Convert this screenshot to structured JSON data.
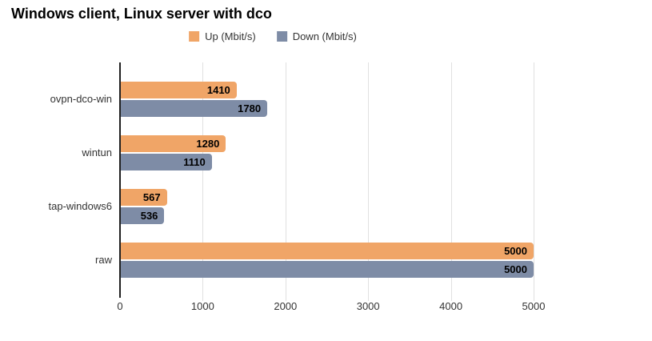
{
  "chart_data": {
    "type": "bar",
    "orientation": "horizontal",
    "title": "Windows client, Linux server with dco",
    "categories": [
      "ovpn-dco-win",
      "wintun",
      "tap-windows6",
      "raw"
    ],
    "series": [
      {
        "name": "Up (Mbit/s)",
        "color": "#F0A567",
        "values": [
          1410,
          1280,
          567,
          5000
        ]
      },
      {
        "name": "Down (Mbit/s)",
        "color": "#7E8CA6",
        "values": [
          1780,
          1110,
          536,
          5000
        ]
      }
    ],
    "xlabel": "",
    "ylabel": "",
    "xlim": [
      0,
      5000
    ],
    "x_ticks": [
      0,
      1000,
      2000,
      3000,
      4000,
      5000
    ],
    "grid": true,
    "legend_position": "top-center",
    "value_labels": "inside-end",
    "axis_line_color": "#212121",
    "gridline_color": "#e0e0e0",
    "value_label_color": "#000000",
    "text_color": "#333333"
  }
}
